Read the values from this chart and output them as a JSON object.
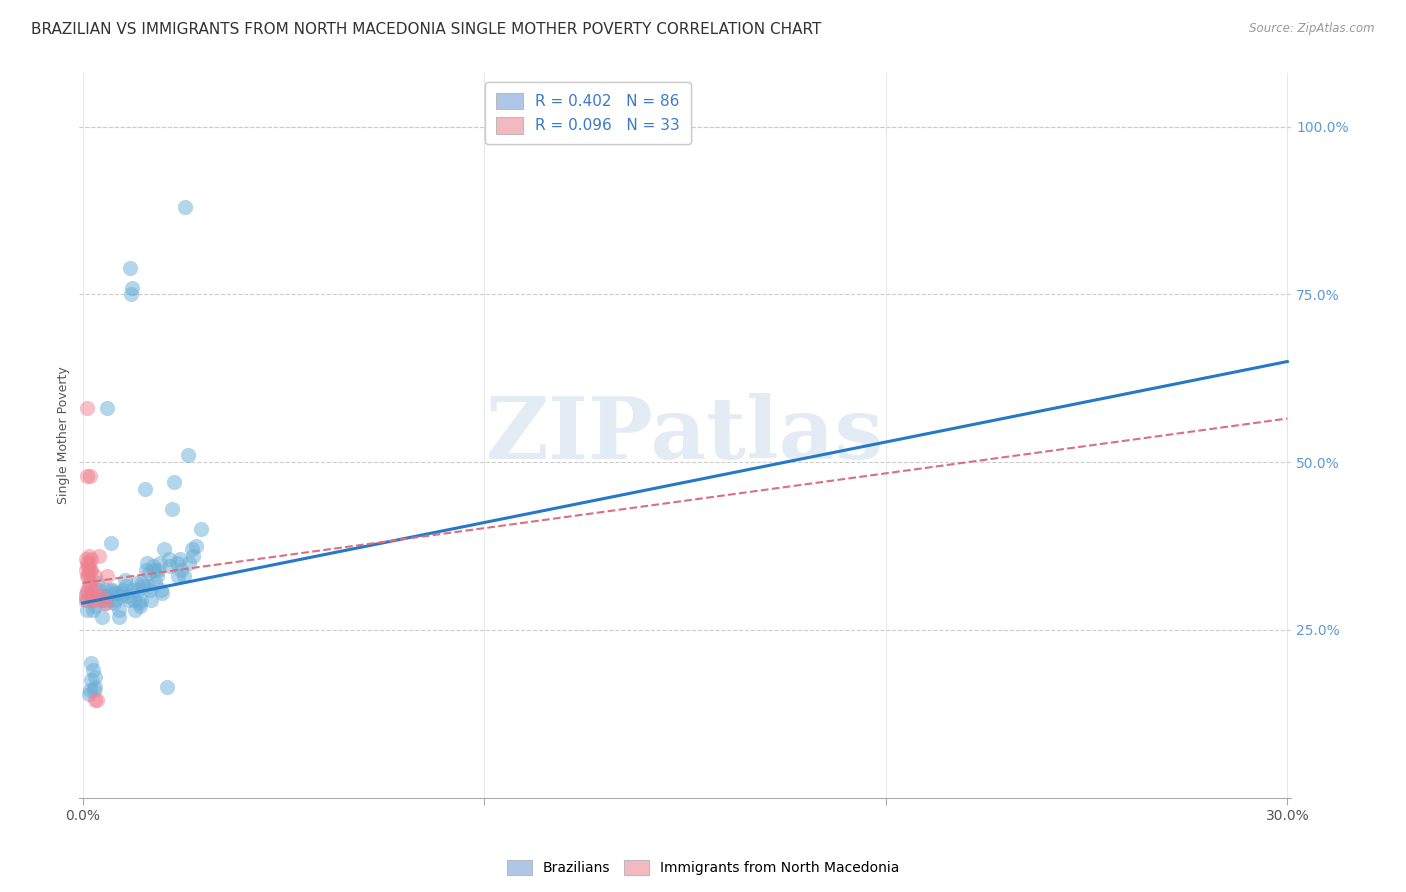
{
  "title": "BRAZILIAN VS IMMIGRANTS FROM NORTH MACEDONIA SINGLE MOTHER POVERTY CORRELATION CHART",
  "source": "Source: ZipAtlas.com",
  "ylabel": "Single Mother Poverty",
  "legend_entries": [
    {
      "label": "R = 0.402   N = 86",
      "color": "#aec6e8"
    },
    {
      "label": "R = 0.096   N = 33",
      "color": "#f4b8c1"
    }
  ],
  "legend_bottom": [
    "Brazilians",
    "Immigrants from North Macedonia"
  ],
  "blue_scatter": [
    [
      0.001,
      0.305
    ],
    [
      0.0012,
      0.295
    ],
    [
      0.0012,
      0.28
    ],
    [
      0.0015,
      0.155
    ],
    [
      0.0018,
      0.16
    ],
    [
      0.002,
      0.175
    ],
    [
      0.0022,
      0.2
    ],
    [
      0.0025,
      0.19
    ],
    [
      0.0028,
      0.16
    ],
    [
      0.003,
      0.18
    ],
    [
      0.0032,
      0.165
    ],
    [
      0.002,
      0.3
    ],
    [
      0.0025,
      0.28
    ],
    [
      0.003,
      0.285
    ],
    [
      0.0035,
      0.32
    ],
    [
      0.0042,
      0.31
    ],
    [
      0.0045,
      0.295
    ],
    [
      0.0048,
      0.27
    ],
    [
      0.005,
      0.3
    ],
    [
      0.0055,
      0.31
    ],
    [
      0.0058,
      0.29
    ],
    [
      0.006,
      0.3
    ],
    [
      0.0062,
      0.58
    ],
    [
      0.0065,
      0.295
    ],
    [
      0.0068,
      0.31
    ],
    [
      0.0072,
      0.38
    ],
    [
      0.0075,
      0.31
    ],
    [
      0.0078,
      0.29
    ],
    [
      0.008,
      0.305
    ],
    [
      0.0082,
      0.295
    ],
    [
      0.0085,
      0.305
    ],
    [
      0.009,
      0.27
    ],
    [
      0.0092,
      0.28
    ],
    [
      0.0095,
      0.3
    ],
    [
      0.0098,
      0.305
    ],
    [
      0.01,
      0.31
    ],
    [
      0.0105,
      0.325
    ],
    [
      0.0108,
      0.315
    ],
    [
      0.011,
      0.3
    ],
    [
      0.0115,
      0.295
    ],
    [
      0.0118,
      0.79
    ],
    [
      0.012,
      0.75
    ],
    [
      0.0122,
      0.76
    ],
    [
      0.0125,
      0.31
    ],
    [
      0.0128,
      0.295
    ],
    [
      0.013,
      0.28
    ],
    [
      0.0135,
      0.32
    ],
    [
      0.0138,
      0.31
    ],
    [
      0.014,
      0.29
    ],
    [
      0.0142,
      0.285
    ],
    [
      0.0145,
      0.295
    ],
    [
      0.0148,
      0.32
    ],
    [
      0.015,
      0.315
    ],
    [
      0.0155,
      0.46
    ],
    [
      0.0158,
      0.34
    ],
    [
      0.016,
      0.35
    ],
    [
      0.0162,
      0.315
    ],
    [
      0.0165,
      0.335
    ],
    [
      0.0168,
      0.31
    ],
    [
      0.017,
      0.295
    ],
    [
      0.0175,
      0.345
    ],
    [
      0.0178,
      0.34
    ],
    [
      0.018,
      0.32
    ],
    [
      0.0185,
      0.33
    ],
    [
      0.0188,
      0.34
    ],
    [
      0.0192,
      0.35
    ],
    [
      0.0195,
      0.31
    ],
    [
      0.0198,
      0.305
    ],
    [
      0.0202,
      0.37
    ],
    [
      0.021,
      0.165
    ],
    [
      0.0215,
      0.355
    ],
    [
      0.0218,
      0.345
    ],
    [
      0.0222,
      0.43
    ],
    [
      0.0228,
      0.47
    ],
    [
      0.0235,
      0.35
    ],
    [
      0.0238,
      0.33
    ],
    [
      0.0242,
      0.355
    ],
    [
      0.0245,
      0.34
    ],
    [
      0.0252,
      0.33
    ],
    [
      0.0255,
      0.88
    ],
    [
      0.0262,
      0.51
    ],
    [
      0.0265,
      0.35
    ],
    [
      0.0272,
      0.37
    ],
    [
      0.0275,
      0.36
    ],
    [
      0.0282,
      0.375
    ],
    [
      0.0295,
      0.4
    ]
  ],
  "pink_scatter": [
    [
      0.0005,
      0.3
    ],
    [
      0.0005,
      0.295
    ],
    [
      0.0008,
      0.355
    ],
    [
      0.0008,
      0.34
    ],
    [
      0.001,
      0.58
    ],
    [
      0.001,
      0.48
    ],
    [
      0.0012,
      0.35
    ],
    [
      0.0012,
      0.33
    ],
    [
      0.0012,
      0.31
    ],
    [
      0.0013,
      0.345
    ],
    [
      0.0014,
      0.33
    ],
    [
      0.0015,
      0.315
    ],
    [
      0.0015,
      0.36
    ],
    [
      0.0016,
      0.35
    ],
    [
      0.0017,
      0.335
    ],
    [
      0.0018,
      0.48
    ],
    [
      0.0018,
      0.34
    ],
    [
      0.0019,
      0.32
    ],
    [
      0.002,
      0.305
    ],
    [
      0.002,
      0.355
    ],
    [
      0.0022,
      0.34
    ],
    [
      0.0022,
      0.3
    ],
    [
      0.0025,
      0.295
    ],
    [
      0.0025,
      0.295
    ],
    [
      0.0028,
      0.31
    ],
    [
      0.003,
      0.33
    ],
    [
      0.003,
      0.145
    ],
    [
      0.0035,
      0.145
    ],
    [
      0.004,
      0.36
    ],
    [
      0.0045,
      0.3
    ],
    [
      0.005,
      0.295
    ],
    [
      0.0055,
      0.29
    ],
    [
      0.006,
      0.33
    ]
  ],
  "blue_line_x": [
    0.0,
    0.3
  ],
  "blue_line_y": [
    0.29,
    0.65
  ],
  "pink_line_x": [
    0.0,
    0.3
  ],
  "pink_line_y": [
    0.32,
    0.565
  ],
  "xlim": [
    -0.001,
    0.301
  ],
  "ylim": [
    0.0,
    1.08
  ],
  "watermark": "ZIPatlas",
  "blue_color": "#6aaed6",
  "pink_color": "#f08090",
  "blue_line_color": "#2878c8",
  "pink_line_color": "#d87080",
  "title_fontsize": 11,
  "axis_label_fontsize": 9,
  "tick_fontsize": 10,
  "background_color": "#ffffff",
  "grid_color": "#cccccc"
}
